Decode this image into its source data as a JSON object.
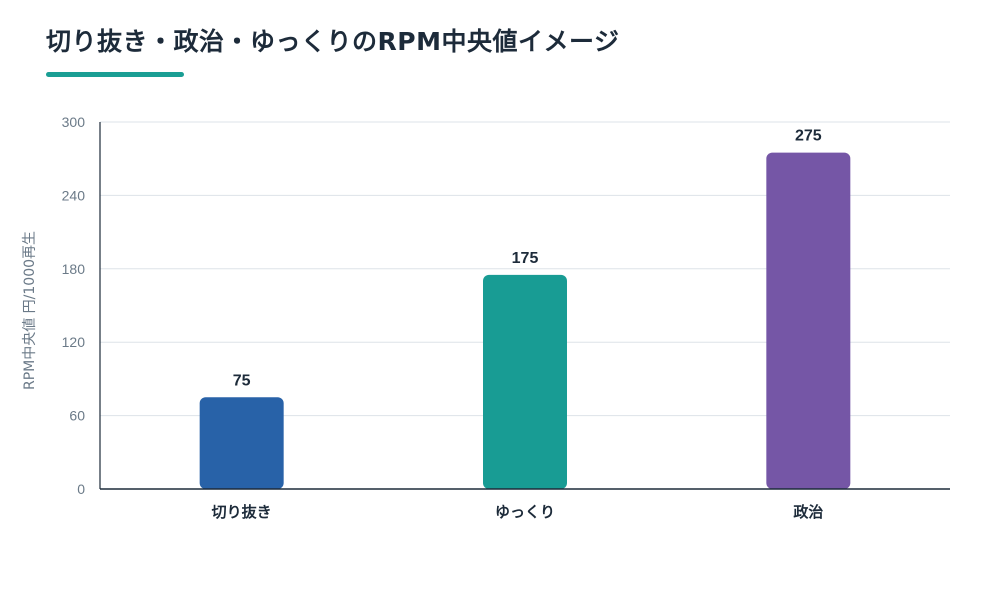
{
  "title": "切り抜き・政治・ゆっくりのRPM中央値イメージ",
  "accent_color": "#1a9e94",
  "chart_data": {
    "type": "bar",
    "title": "切り抜き・政治・ゆっくりのRPM中央値イメージ",
    "categories": [
      "切り抜き",
      "ゆっくり",
      "政治"
    ],
    "values": [
      75,
      175,
      275
    ],
    "colors": [
      "#2862a8",
      "#189c94",
      "#7556a6"
    ],
    "xlabel": "",
    "ylabel": "RPM中央値 円/1000再生",
    "ylim": [
      0,
      300
    ],
    "yticks": [
      0,
      60,
      120,
      180,
      240,
      300
    ],
    "grid": true,
    "data_labels": true,
    "legend": "none"
  }
}
